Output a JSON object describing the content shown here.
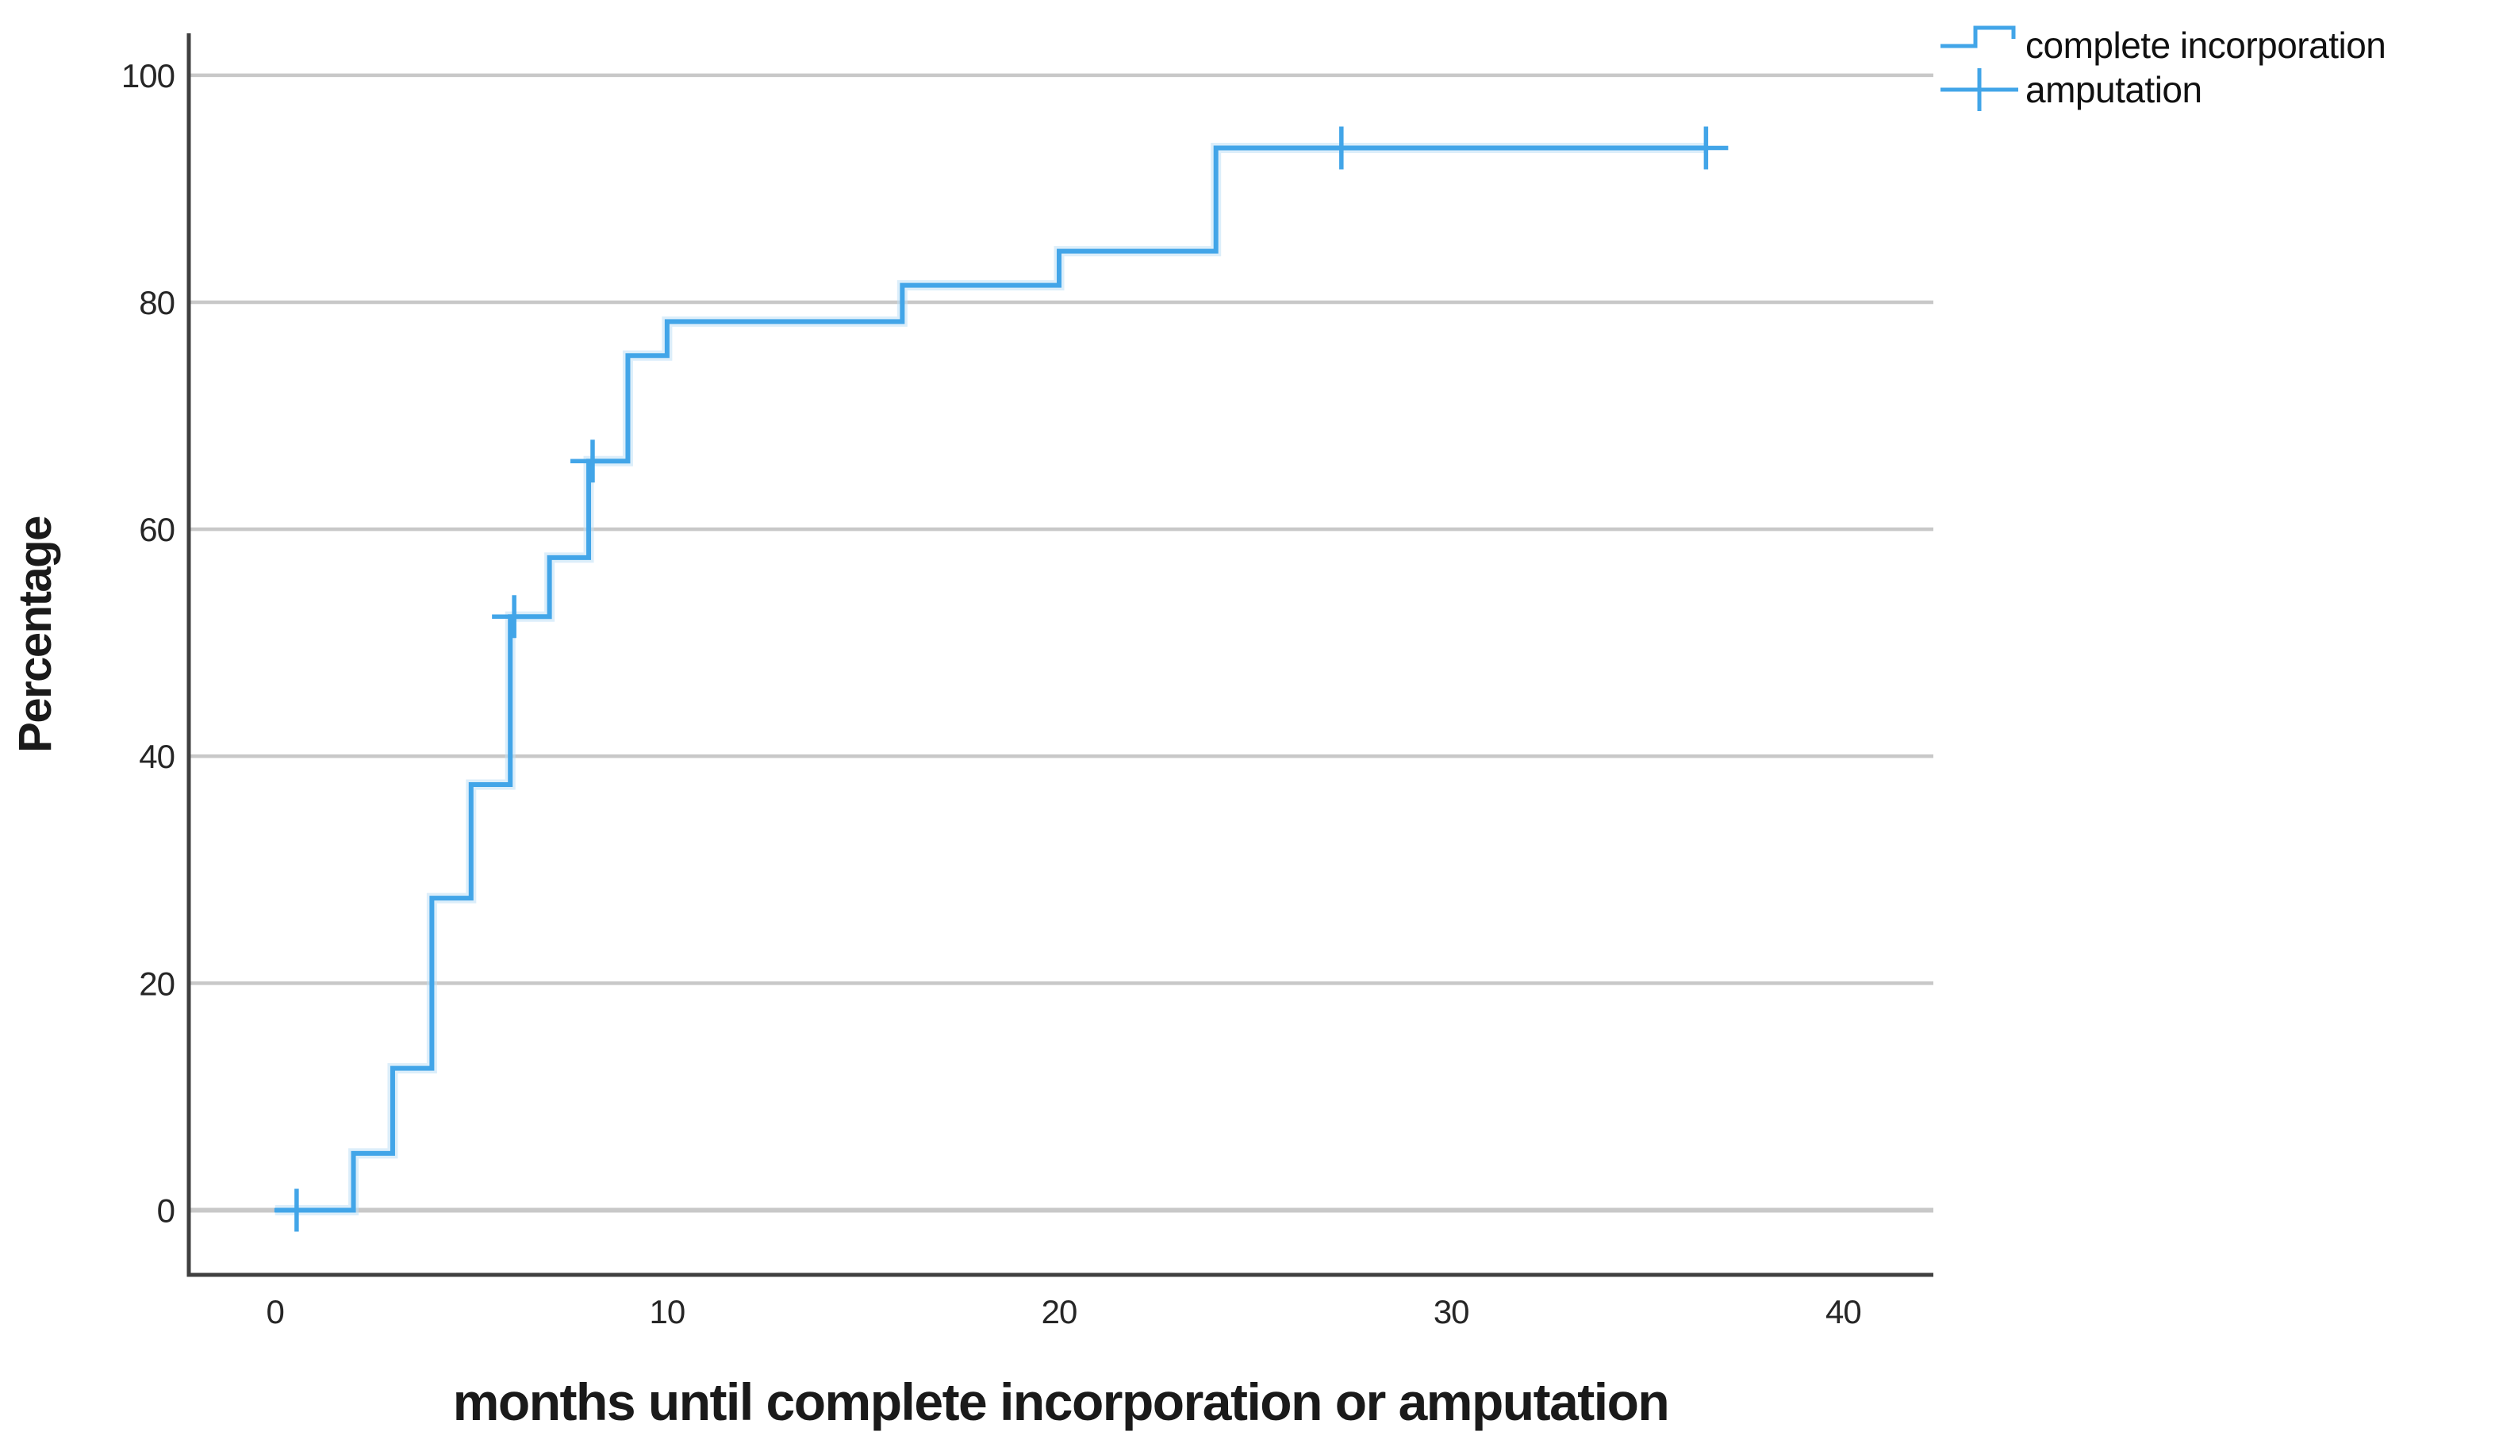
{
  "chart_data": {
    "type": "line",
    "subtype": "step-cumulative-incidence",
    "title": "",
    "xlabel": "months until complete incorporation or amputation",
    "ylabel": "Percentage",
    "x_ticks": [
      0,
      10,
      20,
      30,
      40
    ],
    "y_ticks": [
      0,
      20,
      40,
      60,
      80,
      100
    ],
    "xlim": [
      -2.2,
      42.3
    ],
    "ylim": [
      -5.7,
      103.7
    ],
    "grid": "horizontal",
    "colors": {
      "series": "#42a5e8",
      "series_halo": "#bfe0f6",
      "gridline": "#c8c8c8",
      "axis": "#404040",
      "tick_text": "#262626",
      "title_text": "#1a1a1a"
    },
    "legend": [
      {
        "label": "complete incorporation",
        "marker": "step-line"
      },
      {
        "label": "amputation",
        "marker": "plus"
      }
    ],
    "series": [
      {
        "name": "complete incorporation",
        "color": "#42a5e8",
        "step_points": [
          [
            0,
            0
          ],
          [
            2,
            5
          ],
          [
            3,
            12.5
          ],
          [
            4,
            27.5
          ],
          [
            5,
            37.5
          ],
          [
            6,
            52.3
          ],
          [
            7,
            57.5
          ],
          [
            8,
            66
          ],
          [
            9,
            75.3
          ],
          [
            10,
            78.3
          ],
          [
            16,
            81.5
          ],
          [
            20,
            84.5
          ],
          [
            24,
            93.6
          ],
          [
            36.5,
            93.6
          ]
        ]
      }
    ],
    "censor_marks": {
      "name": "amputation",
      "color": "#42a5e8",
      "points": [
        [
          0.55,
          0
        ],
        [
          6.1,
          52.3
        ],
        [
          8.1,
          66
        ],
        [
          27.2,
          93.6
        ],
        [
          36.5,
          93.6
        ]
      ]
    }
  }
}
